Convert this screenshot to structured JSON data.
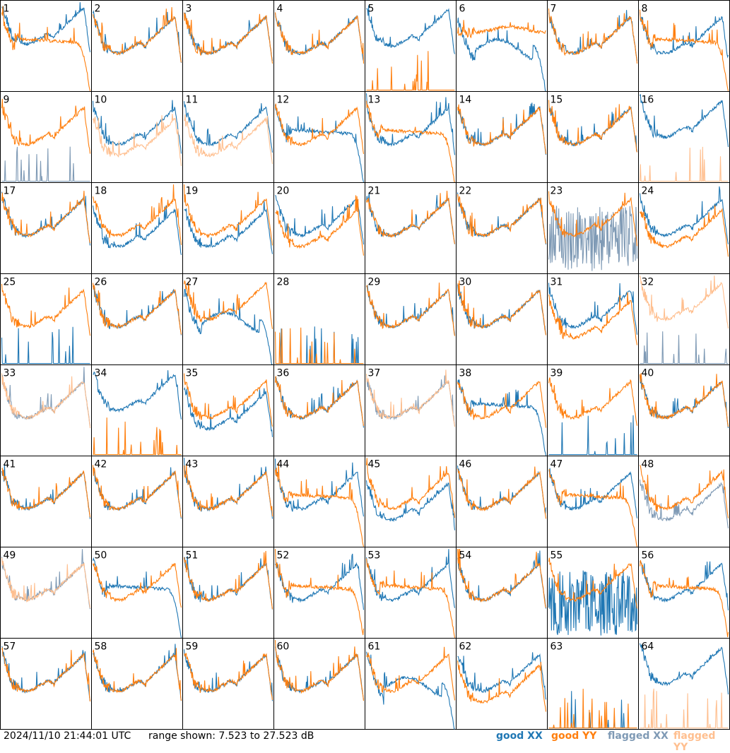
{
  "chart_data": {
    "type": "line",
    "panels": [
      {
        "id": "1",
        "xx": "good",
        "yy": "good",
        "xx_shape": "hump_up",
        "yy_shape": "decay_drop"
      },
      {
        "id": "2",
        "xx": "good",
        "yy": "good",
        "xx_shape": "typical",
        "yy_shape": "typical"
      },
      {
        "id": "3",
        "xx": "good",
        "yy": "good",
        "xx_shape": "typical",
        "yy_shape": "typical"
      },
      {
        "id": "4",
        "xx": "good",
        "yy": "good",
        "xx_shape": "typical",
        "yy_shape": "typical"
      },
      {
        "id": "5",
        "xx": "good",
        "yy": "good",
        "xx_shape": "typical_high",
        "yy_shape": "spikes"
      },
      {
        "id": "6",
        "xx": "good",
        "yy": "good",
        "xx_shape": "dip_wave",
        "yy_shape": "flat_high"
      },
      {
        "id": "7",
        "xx": "good",
        "yy": "good",
        "xx_shape": "typical",
        "yy_shape": "typical"
      },
      {
        "id": "8",
        "xx": "good",
        "yy": "good",
        "xx_shape": "typical",
        "yy_shape": "decay_drop"
      },
      {
        "id": "9",
        "xx": "flagged",
        "yy": "good",
        "xx_shape": "spikes",
        "yy_shape": "typical"
      },
      {
        "id": "10",
        "xx": "good",
        "yy": "flagged",
        "xx_shape": "typical",
        "yy_shape": "typical_low"
      },
      {
        "id": "11",
        "xx": "good",
        "yy": "flagged",
        "xx_shape": "typical",
        "yy_shape": "typical_low"
      },
      {
        "id": "12",
        "xx": "good",
        "yy": "good",
        "xx_shape": "decay_drop",
        "yy_shape": "typical"
      },
      {
        "id": "13",
        "xx": "good",
        "yy": "good",
        "xx_shape": "typical",
        "yy_shape": "decay_drop"
      },
      {
        "id": "14",
        "xx": "good",
        "yy": "good",
        "xx_shape": "typical",
        "yy_shape": "typical"
      },
      {
        "id": "15",
        "xx": "good",
        "yy": "good",
        "xx_shape": "typical",
        "yy_shape": "typical"
      },
      {
        "id": "16",
        "xx": "good",
        "yy": "flagged",
        "xx_shape": "typical_high",
        "yy_shape": "spikes"
      },
      {
        "id": "17",
        "xx": "good",
        "yy": "good",
        "xx_shape": "typical",
        "yy_shape": "typical"
      },
      {
        "id": "18",
        "xx": "good",
        "yy": "good",
        "xx_shape": "typical_low",
        "yy_shape": "typical"
      },
      {
        "id": "19",
        "xx": "good",
        "yy": "good",
        "xx_shape": "typical_low",
        "yy_shape": "typical"
      },
      {
        "id": "20",
        "xx": "good",
        "yy": "good",
        "xx_shape": "typical",
        "yy_shape": "typical_low"
      },
      {
        "id": "21",
        "xx": "good",
        "yy": "good",
        "xx_shape": "typical",
        "yy_shape": "typical"
      },
      {
        "id": "22",
        "xx": "good",
        "yy": "good",
        "xx_shape": "typical",
        "yy_shape": "typical"
      },
      {
        "id": "23",
        "xx": "flagged",
        "yy": "good",
        "xx_shape": "noise",
        "yy_shape": "typical"
      },
      {
        "id": "24",
        "xx": "good",
        "yy": "good",
        "xx_shape": "typical",
        "yy_shape": "typical_low"
      },
      {
        "id": "25",
        "xx": "good",
        "yy": "good",
        "xx_shape": "spikes",
        "yy_shape": "typical"
      },
      {
        "id": "26",
        "xx": "good",
        "yy": "good",
        "xx_shape": "typical",
        "yy_shape": "typical"
      },
      {
        "id": "27",
        "xx": "good",
        "yy": "good",
        "xx_shape": "dip_wave",
        "yy_shape": "typical_high"
      },
      {
        "id": "28",
        "xx": "good",
        "yy": "good",
        "xx_shape": "spikes",
        "yy_shape": "spikes"
      },
      {
        "id": "29",
        "xx": "good",
        "yy": "good",
        "xx_shape": "typical",
        "yy_shape": "typical"
      },
      {
        "id": "30",
        "xx": "good",
        "yy": "good",
        "xx_shape": "typical",
        "yy_shape": "typical"
      },
      {
        "id": "31",
        "xx": "good",
        "yy": "good",
        "xx_shape": "typical",
        "yy_shape": "typical_low"
      },
      {
        "id": "32",
        "xx": "flagged",
        "yy": "flagged",
        "xx_shape": "spikes",
        "yy_shape": "typical_high"
      },
      {
        "id": "33",
        "xx": "flagged",
        "yy": "flagged",
        "xx_shape": "typical",
        "yy_shape": "typical"
      },
      {
        "id": "34",
        "xx": "good",
        "yy": "good",
        "xx_shape": "typical_high",
        "yy_shape": "spikes"
      },
      {
        "id": "35",
        "xx": "good",
        "yy": "good",
        "xx_shape": "typical_low",
        "yy_shape": "typical"
      },
      {
        "id": "36",
        "xx": "good",
        "yy": "good",
        "xx_shape": "typical",
        "yy_shape": "typical"
      },
      {
        "id": "37",
        "xx": "flagged",
        "yy": "flagged",
        "xx_shape": "typical",
        "yy_shape": "typical"
      },
      {
        "id": "38",
        "xx": "good",
        "yy": "good",
        "xx_shape": "decay_drop",
        "yy_shape": "typical"
      },
      {
        "id": "39",
        "xx": "good",
        "yy": "good",
        "xx_shape": "spikes",
        "yy_shape": "typical"
      },
      {
        "id": "40",
        "xx": "good",
        "yy": "good",
        "xx_shape": "typical",
        "yy_shape": "typical"
      },
      {
        "id": "41",
        "xx": "good",
        "yy": "good",
        "xx_shape": "typical",
        "yy_shape": "typical"
      },
      {
        "id": "42",
        "xx": "good",
        "yy": "good",
        "xx_shape": "typical",
        "yy_shape": "typical"
      },
      {
        "id": "43",
        "xx": "good",
        "yy": "good",
        "xx_shape": "typical",
        "yy_shape": "typical"
      },
      {
        "id": "44",
        "xx": "good",
        "yy": "good",
        "xx_shape": "typical",
        "yy_shape": "decay_drop"
      },
      {
        "id": "45",
        "xx": "good",
        "yy": "good",
        "xx_shape": "typical_low",
        "yy_shape": "typical"
      },
      {
        "id": "46",
        "xx": "good",
        "yy": "good",
        "xx_shape": "typical",
        "yy_shape": "typical"
      },
      {
        "id": "47",
        "xx": "good",
        "yy": "good",
        "xx_shape": "typical",
        "yy_shape": "decay_drop"
      },
      {
        "id": "48",
        "xx": "flagged",
        "yy": "good",
        "xx_shape": "typical_low",
        "yy_shape": "typical"
      },
      {
        "id": "49",
        "xx": "flagged",
        "yy": "flagged",
        "xx_shape": "typical",
        "yy_shape": "typical"
      },
      {
        "id": "50",
        "xx": "good",
        "yy": "good",
        "xx_shape": "decay_drop",
        "yy_shape": "typical"
      },
      {
        "id": "51",
        "xx": "good",
        "yy": "good",
        "xx_shape": "typical",
        "yy_shape": "typical"
      },
      {
        "id": "52",
        "xx": "good",
        "yy": "good",
        "xx_shape": "typical",
        "yy_shape": "decay_drop"
      },
      {
        "id": "53",
        "xx": "good",
        "yy": "good",
        "xx_shape": "typical",
        "yy_shape": "decay_drop"
      },
      {
        "id": "54",
        "xx": "good",
        "yy": "good",
        "xx_shape": "typical",
        "yy_shape": "typical"
      },
      {
        "id": "55",
        "xx": "good",
        "yy": "good",
        "xx_shape": "noise",
        "yy_shape": "typical"
      },
      {
        "id": "56",
        "xx": "good",
        "yy": "good",
        "xx_shape": "typical",
        "yy_shape": "decay_drop"
      },
      {
        "id": "57",
        "xx": "good",
        "yy": "good",
        "xx_shape": "typical",
        "yy_shape": "typical"
      },
      {
        "id": "58",
        "xx": "good",
        "yy": "good",
        "xx_shape": "typical",
        "yy_shape": "typical"
      },
      {
        "id": "59",
        "xx": "good",
        "yy": "good",
        "xx_shape": "typical",
        "yy_shape": "typical"
      },
      {
        "id": "60",
        "xx": "good",
        "yy": "good",
        "xx_shape": "typical",
        "yy_shape": "typical"
      },
      {
        "id": "61",
        "xx": "good",
        "yy": "good",
        "xx_shape": "dip_wave",
        "yy_shape": "typical"
      },
      {
        "id": "62",
        "xx": "good",
        "yy": "good",
        "xx_shape": "typical",
        "yy_shape": "typical_low"
      },
      {
        "id": "63",
        "xx": "good",
        "yy": "good",
        "xx_shape": "spikes",
        "yy_shape": "spikes"
      },
      {
        "id": "64",
        "xx": "good",
        "yy": "flagged",
        "xx_shape": "typical_high",
        "yy_shape": "spikes"
      }
    ],
    "range_min_db": 7.523,
    "range_max_db": 27.523,
    "series_colors": {
      "good_xx": "#1f77b4",
      "good_yy": "#ff7f0e",
      "flagged_xx": "#7f9ab5",
      "flagged_yy": "#ffbf8f"
    }
  },
  "footer": {
    "timestamp": "2024/11/10 21:44:01 UTC",
    "range_text": "range shown: 7.523 to 27.523 dB",
    "legend": {
      "good_xx": "good XX",
      "good_yy": "good YY",
      "flagged_xx": "flagged XX",
      "flagged_yy": "flagged YY"
    }
  }
}
